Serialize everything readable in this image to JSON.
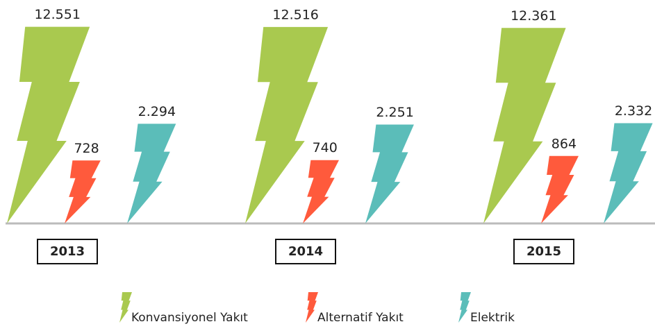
{
  "chart_data": {
    "type": "bar",
    "categories": [
      "2013",
      "2014",
      "2015"
    ],
    "series": [
      {
        "name": "Konvansiyonel Yakıt",
        "color": "#a9c94f",
        "values": [
          12551,
          12516,
          12361
        ],
        "value_labels": [
          "12.551",
          "12.516",
          "12.361"
        ]
      },
      {
        "name": "Alternatif Yakıt",
        "color": "#ff5a3c",
        "values": [
          728,
          740,
          864
        ],
        "value_labels": [
          "728",
          "740",
          "864"
        ]
      },
      {
        "name": "Elektrik",
        "color": "#5bbdb9",
        "values": [
          2294,
          2251,
          2332
        ],
        "value_labels": [
          "2.294",
          "2.251",
          "2.332"
        ]
      }
    ]
  }
}
